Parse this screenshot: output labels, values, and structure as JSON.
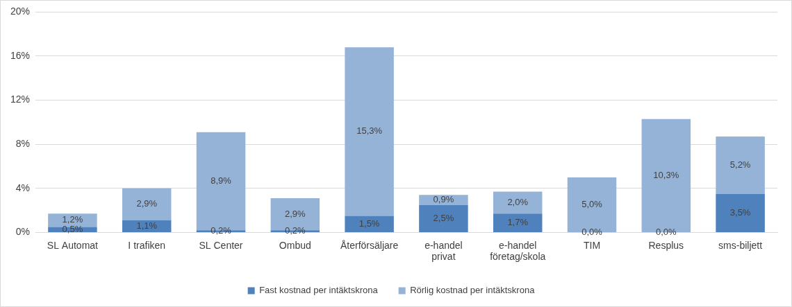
{
  "chart_data": {
    "type": "bar",
    "stacked": true,
    "categories": [
      "SL Automat",
      "I trafiken",
      "SL Center",
      "Ombud",
      "Återförsäljare",
      "e-handel\nprivat",
      "e-handel\nföretag/skola",
      "TIM",
      "Resplus",
      "sms-biljett"
    ],
    "series": [
      {
        "name": "Fast kostnad per intäktskrona",
        "color": "#4f81bd",
        "values": [
          0.5,
          1.1,
          0.2,
          0.2,
          1.5,
          2.5,
          1.7,
          0.0,
          0.0,
          3.5
        ],
        "value_labels": [
          "0,5%",
          "1,1%",
          "0,2%",
          "0,2%",
          "1,5%",
          "2,5%",
          "1,7%",
          "0,0%",
          "0,0%",
          "3,5%"
        ]
      },
      {
        "name": "Rörlig kostnad per intäktskrona",
        "color": "#95b3d7",
        "values": [
          1.2,
          2.9,
          8.9,
          2.9,
          15.3,
          0.9,
          2.0,
          5.0,
          10.3,
          5.2
        ],
        "value_labels": [
          "1,2%",
          "2,9%",
          "8,9%",
          "2,9%",
          "15,3%",
          "0,9%",
          "2,0%",
          "5,0%",
          "10,3%",
          "5,2%"
        ]
      }
    ],
    "ylim": [
      0,
      20
    ],
    "yticks": [
      {
        "value": 0,
        "label": "0%"
      },
      {
        "value": 4,
        "label": "4%"
      },
      {
        "value": 8,
        "label": "8%"
      },
      {
        "value": 12,
        "label": "12%"
      },
      {
        "value": 16,
        "label": "16%"
      },
      {
        "value": 20,
        "label": "20%"
      }
    ],
    "grid": true,
    "legend": "bottom",
    "data_labels": true
  }
}
